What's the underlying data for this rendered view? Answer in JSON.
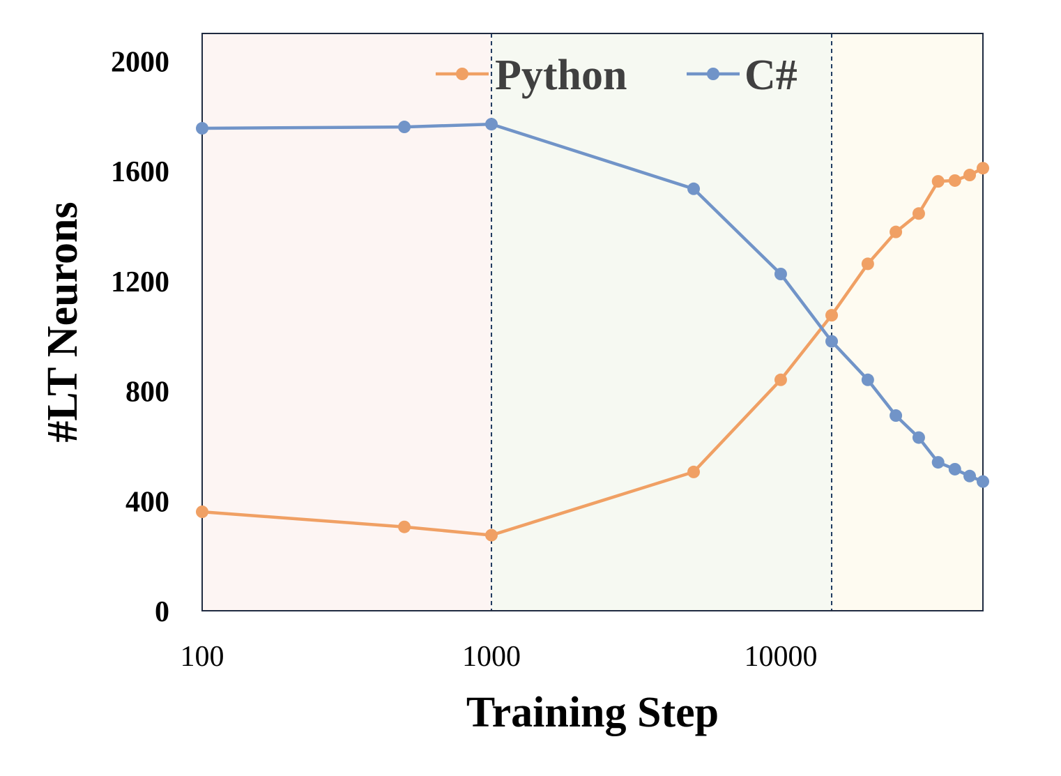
{
  "chart_data": {
    "type": "line",
    "xlabel": "Training Step",
    "ylabel": "#LT Neurons",
    "x_scale": "log",
    "xlim": [
      100,
      50000
    ],
    "ylim": [
      0,
      2100
    ],
    "x_ticks": [
      100,
      1000,
      10000
    ],
    "x_tick_labels": [
      "100",
      "1000",
      "10000"
    ],
    "y_ticks": [
      0,
      400,
      800,
      1200,
      1600,
      2000
    ],
    "y_tick_labels": [
      "0",
      "400",
      "800",
      "1200",
      "1600",
      "2000"
    ],
    "grid": false,
    "legend_position": "top-center",
    "regions": [
      {
        "from": 100,
        "to": 1000,
        "color": "#fdf5f3"
      },
      {
        "from": 1000,
        "to": 15000,
        "color": "#f6f9f2"
      },
      {
        "from": 15000,
        "to": 50000,
        "color": "#fefbf1"
      }
    ],
    "dividers": [
      1000,
      15000
    ],
    "divider_color": "#1f3a5f",
    "series": [
      {
        "name": "Python",
        "color": "#f0a064",
        "x": [
          100,
          500,
          1000,
          5000,
          10000,
          15000,
          20000,
          25000,
          30000,
          35000,
          40000,
          45000,
          50000
        ],
        "y": [
          360,
          305,
          275,
          505,
          840,
          1075,
          1262,
          1378,
          1445,
          1562,
          1565,
          1585,
          1610
        ]
      },
      {
        "name": "C#",
        "color": "#7194c8",
        "x": [
          100,
          500,
          1000,
          5000,
          10000,
          15000,
          20000,
          25000,
          30000,
          35000,
          40000,
          45000,
          50000
        ],
        "y": [
          1755,
          1760,
          1770,
          1535,
          1225,
          980,
          840,
          710,
          630,
          540,
          515,
          490,
          470
        ]
      }
    ]
  }
}
